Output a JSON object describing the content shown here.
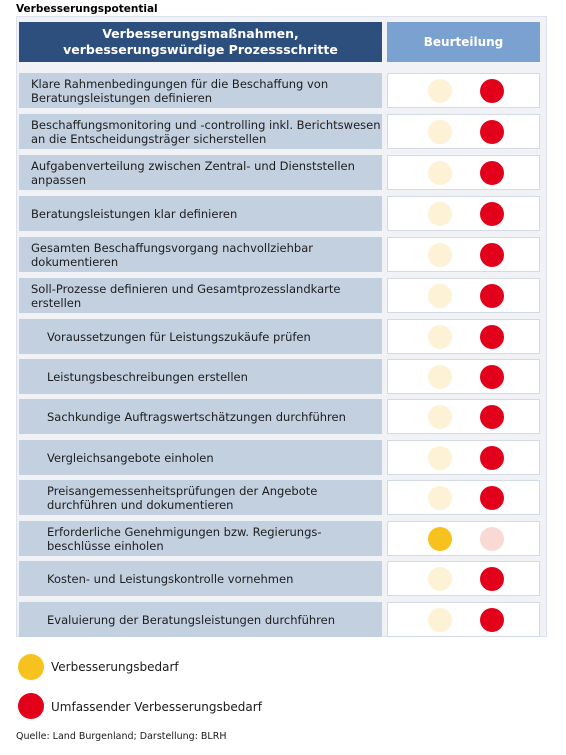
{
  "title": "Verbesserungspotential",
  "header": {
    "left_line1": "Verbesserungsmaßnahmen,",
    "left_line2": "verbesserungswürdige Prozessschritte",
    "right": "Beurteilung"
  },
  "colors": {
    "yellow_active": "#f7c21d",
    "yellow_faded": "#fdf1d6",
    "red_active": "#e2001a",
    "red_faded": "#f9d9d4"
  },
  "rows": [
    {
      "text": "Klare Rahmenbedingungen für die Beschaffung von Beratungsleistungen definieren",
      "rating": "Umfassender Verbesserungsbedarf"
    },
    {
      "text": "Beschaffungsmonitoring und -controlling inkl. Berichtswesen an die Entscheidungsträger sicherstellen",
      "rating": "Umfassender Verbesserungsbedarf"
    },
    {
      "text": "Aufgabenverteilung zwischen Zentral- und Dienststellen anpassen",
      "rating": "Umfassender Verbesserungsbedarf"
    },
    {
      "text": "Beratungsleistungen klar definieren",
      "rating": "Umfassender Verbesserungsbedarf"
    },
    {
      "text": "Gesamten Beschaffungsvorgang nachvollziehbar dokumentieren",
      "rating": "Umfassender Verbesserungsbedarf"
    },
    {
      "text": "Soll-Prozesse definieren und Gesamtprozesslandkarte erstellen",
      "rating": "Umfassender Verbesserungsbedarf"
    },
    {
      "text": "Voraussetzungen für Leistungszukäufe prüfen",
      "rating": "Umfassender Verbesserungsbedarf"
    },
    {
      "text": "Leistungsbeschreibungen erstellen",
      "rating": "Umfassender Verbesserungsbedarf"
    },
    {
      "text": "Sachkundige Auftragswertschätzungen durchführen",
      "rating": "Umfassender Verbesserungsbedarf"
    },
    {
      "text": "Vergleichsangebote einholen",
      "rating": "Umfassender Verbesserungsbedarf"
    },
    {
      "text": "Preisangemessenheitsprüfungen der Angebote durchführen und dokumentieren",
      "rating": "Umfassender Verbesserungsbedarf"
    },
    {
      "text": "Erforderliche Genehmigungen bzw. Regierungs-beschlüsse einholen",
      "rating": "Verbesserungsbedarf"
    },
    {
      "text": "Kosten- und Leistungskontrolle vornehmen",
      "rating": "Umfassender Verbesserungsbedarf"
    },
    {
      "text": "Evaluierung der Beratungsleistungen durchführen",
      "rating": "Umfassender Verbesserungsbedarf"
    }
  ],
  "legend": {
    "yellow": "Verbesserungsbedarf",
    "red": "Umfassender Verbesserungsbedarf"
  },
  "source": "Quelle: Land Burgenland; Darstellung: BLRH"
}
